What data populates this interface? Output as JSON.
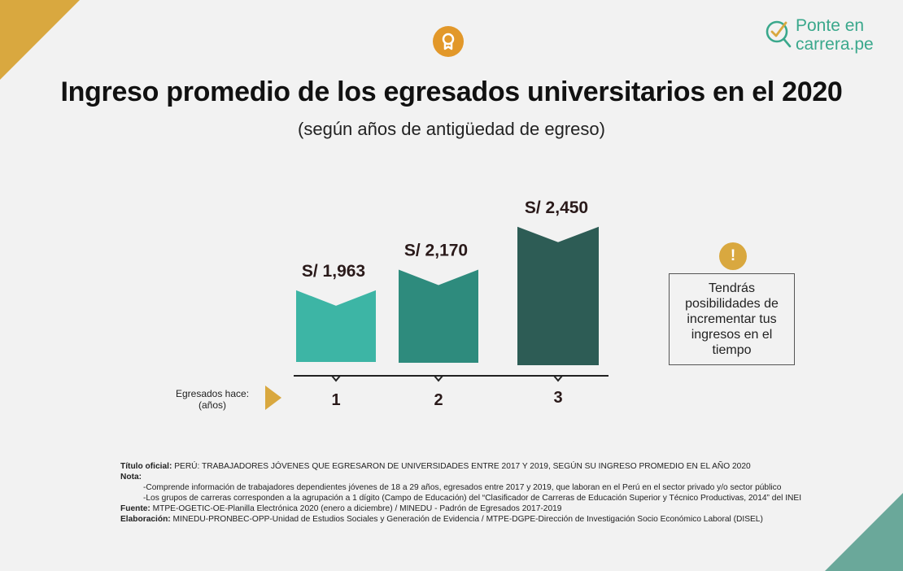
{
  "title": "Ingreso promedio de los egresados universitarios en el 2020",
  "subtitle": "(según años de antigüedad de egreso)",
  "logo": {
    "line1": "Ponte en",
    "line2": "carrera.pe"
  },
  "chart_data": {
    "type": "bar",
    "title": "Ingreso promedio de los egresados universitarios en el 2020",
    "subtitle": "(según años de antigüedad de egreso)",
    "xlabel": "Egresados hace: (años)",
    "ylabel": "",
    "categories": [
      "1",
      "2",
      "3"
    ],
    "values": [
      1963,
      2170,
      2450
    ],
    "value_labels": [
      "S/ 1,963",
      "S/ 2,170",
      "S/ 2,450"
    ],
    "colors": [
      "#3db5a5",
      "#2e8b7d",
      "#2d5c55"
    ],
    "ylim": [
      0,
      2450
    ],
    "grid": false,
    "legend": "none"
  },
  "axis": {
    "label_line1": "Egresados hace:",
    "label_line2": "(años)"
  },
  "callout": {
    "icon": "exclamation-icon",
    "symbol": "!",
    "text": "Tendrás posibilidades de incrementar tus ingresos en el tiempo"
  },
  "notes": {
    "titulo_label": "Título oficial:",
    "titulo_text": "PERÚ: TRABAJADORES JÓVENES QUE EGRESARON DE UNIVERSIDADES ENTRE 2017 Y 2019, SEGÚN SU INGRESO PROMEDIO EN EL AÑO 2020",
    "nota_label": "Nota:",
    "nota_items": [
      "-Comprende información de trabajadores dependientes jóvenes de 18 a 29 años, egresados entre 2017 y 2019, que laboran en el Perú en el sector privado y/o sector público",
      "-Los grupos de carreras corresponden a la agrupación a 1 dígito (Campo de Educación) del “Clasificador de Carreras de Educación Superior y Técnico Productivas, 2014” del INEI"
    ],
    "fuente_label": "Fuente:",
    "fuente_text": "MTPE-OGETIC-OE-Planilla Electrónica 2020 (enero a diciembre) / MINEDU - Padrón de Egresados 2017-2019",
    "elaboracion_label": "Elaboración:",
    "elaboracion_text": "MINEDU-PRONBEC-OPP-Unidad de Estudios Sociales y Generación de Evidencia / MTPE-DGPE-Dirección de Investigación Socio Económico Laboral (DISEL)"
  },
  "colors": {
    "background": "#f2f2f2",
    "accent_gold": "#d9a83f",
    "accent_orange": "#e2982a",
    "brand_green": "#3aa88c",
    "corner_teal": "#6aa89a"
  }
}
